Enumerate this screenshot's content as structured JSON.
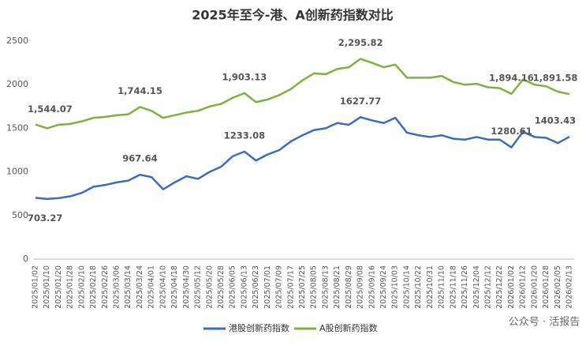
{
  "chart_data": {
    "type": "line",
    "title": "2025年至今-港、A创新药指数对比",
    "categories": [
      "2025/01/02",
      "2025/01/10",
      "2025/01/20",
      "2025/01/28",
      "2025/02/10",
      "2025/02/18",
      "2025/02/26",
      "2025/03/06",
      "2025/03/14",
      "2025/03/24",
      "2025/04/01",
      "2025/04/10",
      "2025/04/18",
      "2025/04/30",
      "2025/05/12",
      "2025/05/20",
      "2025/05/28",
      "2025/06/05",
      "2025/06/13",
      "2025/06/23",
      "2025/07/01",
      "2025/07/09",
      "2025/07/17",
      "2025/07/25",
      "2025/08/05",
      "2025/08/13",
      "2025/08/21",
      "2025/08/29",
      "2025/09/08",
      "2025/09/16",
      "2025/09/24",
      "2025/10/03",
      "2025/10/14",
      "2025/10/22",
      "2025/10/31",
      "2025/11/10",
      "2025/11/18",
      "2025/11/26",
      "2025/12/04",
      "2025/12/12",
      "2025/12/22",
      "2026/01/02",
      "2026/01/12",
      "2026/01/20",
      "2026/01/28",
      "2026/02/05",
      "2026/02/13"
    ],
    "series": [
      {
        "name": "港股创新药指数",
        "color": "#3d6bbd",
        "values": [
          703.27,
          690,
          700,
          720,
          760,
          830,
          850,
          880,
          900,
          967.64,
          940,
          800,
          880,
          950,
          920,
          1000,
          1060,
          1180,
          1233.08,
          1130,
          1200,
          1250,
          1350,
          1420,
          1480,
          1500,
          1560,
          1540,
          1627.77,
          1590,
          1560,
          1620,
          1450,
          1420,
          1400,
          1420,
          1380,
          1370,
          1400,
          1370,
          1370,
          1280.61,
          1460,
          1400,
          1390,
          1330,
          1403.43
        ],
        "value_labels": [
          "703.27",
          null,
          null,
          null,
          null,
          null,
          null,
          null,
          null,
          "967.64",
          null,
          null,
          null,
          null,
          null,
          null,
          null,
          null,
          "1233.08",
          null,
          null,
          null,
          null,
          null,
          null,
          null,
          null,
          null,
          "1627.77",
          null,
          null,
          null,
          null,
          null,
          null,
          null,
          null,
          null,
          null,
          null,
          null,
          "1280.61",
          null,
          null,
          null,
          null,
          "1403.43"
        ]
      },
      {
        "name": "A股创新药指数",
        "color": "#80b03f",
        "values": [
          1544.07,
          1500,
          1540,
          1550,
          1580,
          1620,
          1630,
          1650,
          1660,
          1744.15,
          1700,
          1620,
          1650,
          1680,
          1700,
          1750,
          1780,
          1850,
          1903.13,
          1800,
          1830,
          1880,
          1950,
          2050,
          2130,
          2120,
          2180,
          2200,
          2295.82,
          2250,
          2200,
          2230,
          2080,
          2080,
          2080,
          2100,
          2030,
          2000,
          2010,
          1970,
          1960,
          1894.16,
          2060,
          2000,
          1980,
          1920,
          1891.58
        ],
        "value_labels": [
          "1,544.07",
          null,
          null,
          null,
          null,
          null,
          null,
          null,
          null,
          "1,744.15",
          null,
          null,
          null,
          null,
          null,
          null,
          null,
          null,
          "1,903.13",
          null,
          null,
          null,
          null,
          null,
          null,
          null,
          null,
          null,
          "2,295.82",
          null,
          null,
          null,
          null,
          null,
          null,
          null,
          null,
          null,
          null,
          null,
          null,
          "1,894.16",
          null,
          null,
          null,
          null,
          "1,891.58"
        ]
      }
    ],
    "ylim": [
      0,
      2500
    ],
    "yticks": [
      0,
      500,
      1000,
      1500,
      2000,
      2500
    ],
    "grid": false,
    "legend": "bottom",
    "watermark": "公众号 · 活报告"
  }
}
